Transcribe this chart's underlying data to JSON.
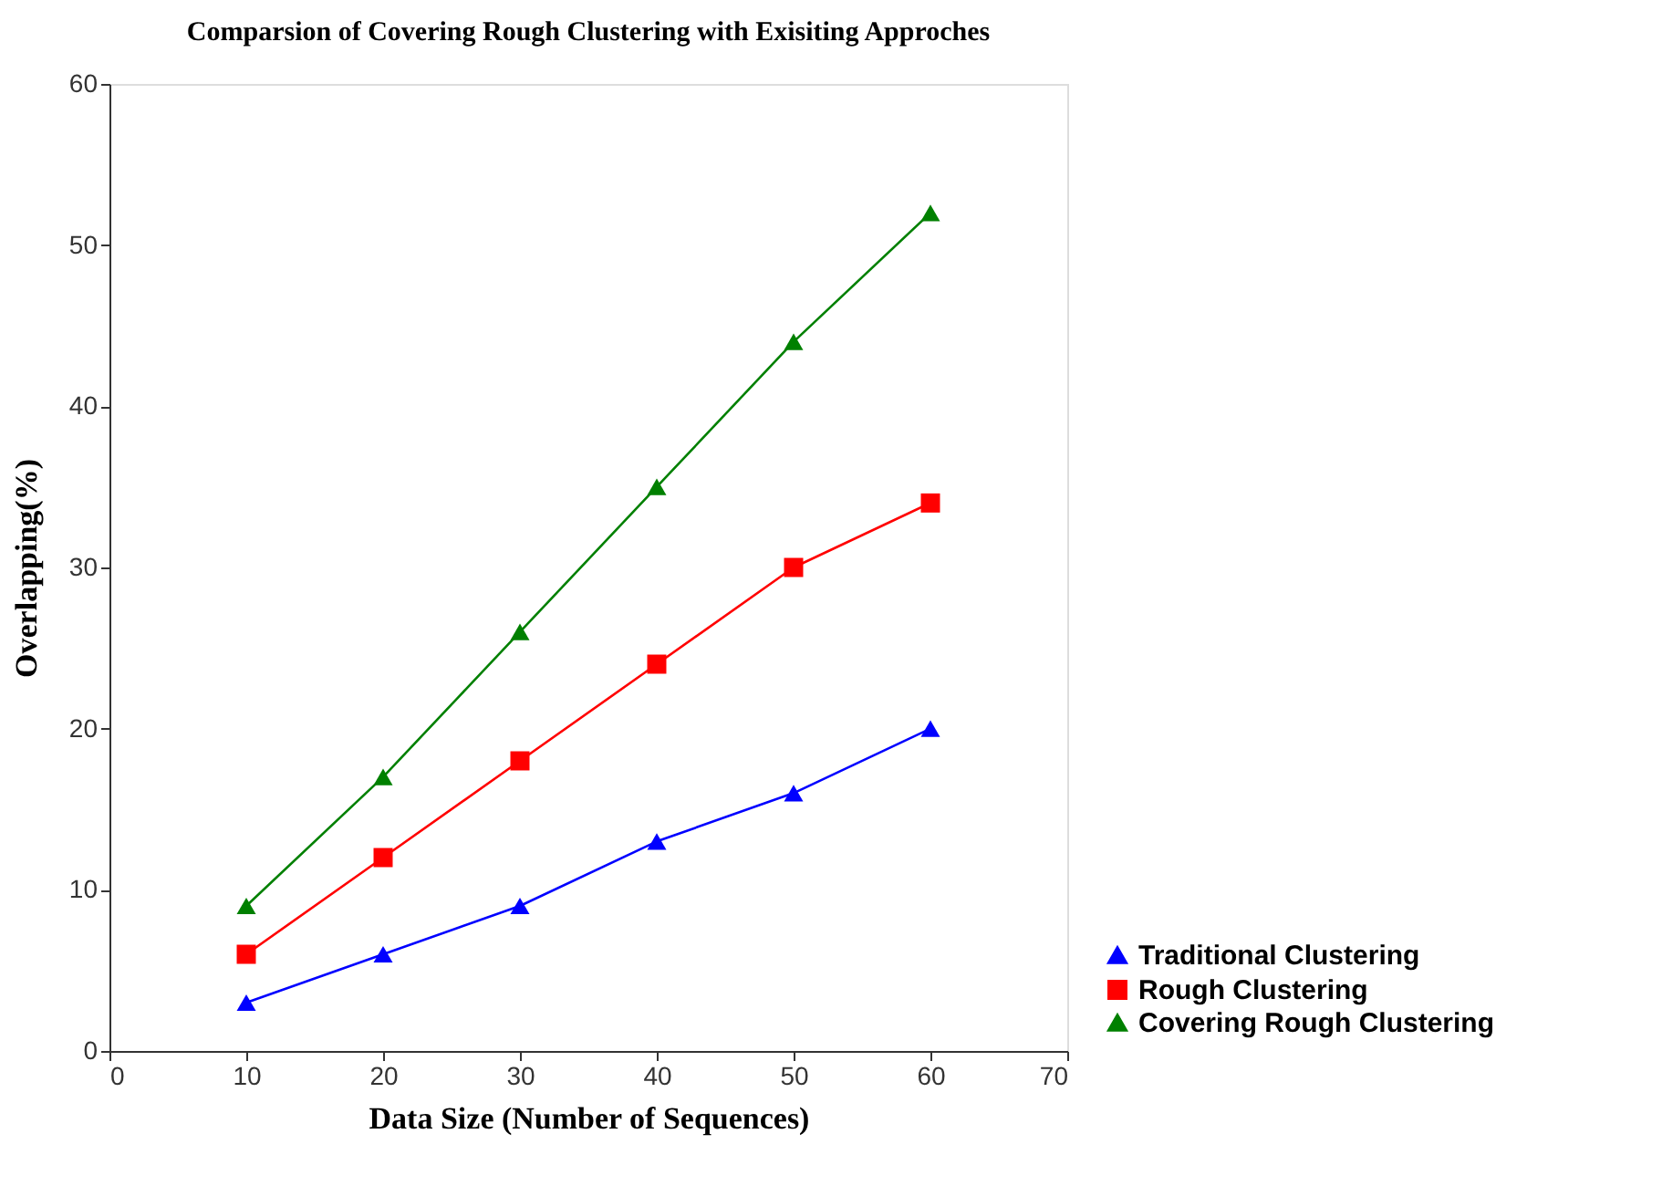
{
  "chart_data": {
    "type": "line",
    "title": "Comparsion of Covering  Rough  Clustering  with Exisiting Approches",
    "xlabel": "Data Size (Number of Sequences)",
    "ylabel": "Overlapping(%)",
    "x": [
      10,
      20,
      30,
      40,
      50,
      60
    ],
    "series": [
      {
        "name": "Traditional  Clustering",
        "color": "#0000ff",
        "marker": "triangle",
        "values": [
          3,
          6,
          9,
          13,
          16,
          20
        ]
      },
      {
        "name": "Rough Clustering",
        "color": "#ff0000",
        "marker": "square",
        "values": [
          6,
          12,
          18,
          24,
          30,
          34
        ]
      },
      {
        "name": "Covering Rough Clustering",
        "color": "#008000",
        "marker": "triangle",
        "values": [
          9,
          17,
          26,
          35,
          44,
          52
        ]
      }
    ],
    "xlim": [
      0,
      70
    ],
    "xticks": [
      0,
      10,
      20,
      30,
      40,
      50,
      60,
      70
    ],
    "ylim": [
      0,
      60
    ],
    "yticks": [
      0,
      10,
      20,
      30,
      40,
      50,
      60
    ],
    "grid": false,
    "legend": "bottom right",
    "line_style": "solid"
  }
}
